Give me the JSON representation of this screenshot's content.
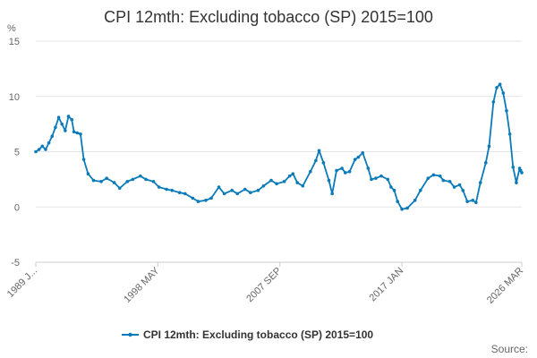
{
  "chart_data": {
    "type": "line",
    "title": "CPI 12mth: Excluding tobacco (SP) 2015=100",
    "y_unit_label": "%",
    "xlabel": "",
    "ylabel": "",
    "ylim": [
      -5,
      15
    ],
    "y_ticks": [
      "15",
      "10",
      "5",
      "0",
      "-5"
    ],
    "x_range": [
      "1989-01",
      "2026-03"
    ],
    "x_tick_labels": [
      {
        "label": "1989 J...",
        "date": "1989-01"
      },
      {
        "label": "1998 MAY",
        "date": "1998-05"
      },
      {
        "label": "2007 SEP",
        "date": "2007-09"
      },
      {
        "label": "2017 JAN",
        "date": "2017-01"
      },
      {
        "label": "2026 MAR",
        "date": "2026-03"
      }
    ],
    "grid": true,
    "legend_position": "bottom",
    "series": [
      {
        "name": "CPI 12mth: Excluding tobacco (SP) 2015=100",
        "color": "#0a7ab9",
        "points": [
          [
            "1989-01",
            5.0
          ],
          [
            "1989-04",
            5.2
          ],
          [
            "1989-07",
            5.5
          ],
          [
            "1989-10",
            5.2
          ],
          [
            "1990-01",
            5.8
          ],
          [
            "1990-04",
            6.4
          ],
          [
            "1990-07",
            7.2
          ],
          [
            "1990-10",
            8.1
          ],
          [
            "1991-01",
            7.5
          ],
          [
            "1991-04",
            6.9
          ],
          [
            "1991-07",
            8.2
          ],
          [
            "1991-10",
            7.9
          ],
          [
            "1991-12",
            6.8
          ],
          [
            "1992-03",
            6.7
          ],
          [
            "1992-06",
            6.6
          ],
          [
            "1992-09",
            4.3
          ],
          [
            "1993-01",
            3.0
          ],
          [
            "1993-06",
            2.4
          ],
          [
            "1994-01",
            2.3
          ],
          [
            "1994-06",
            2.6
          ],
          [
            "1995-01",
            2.2
          ],
          [
            "1995-06",
            1.7
          ],
          [
            "1996-01",
            2.3
          ],
          [
            "1996-06",
            2.5
          ],
          [
            "1997-01",
            2.8
          ],
          [
            "1997-06",
            2.5
          ],
          [
            "1998-01",
            2.3
          ],
          [
            "1998-06",
            1.8
          ],
          [
            "1999-01",
            1.6
          ],
          [
            "1999-06",
            1.5
          ],
          [
            "2000-01",
            1.3
          ],
          [
            "2000-06",
            1.2
          ],
          [
            "2001-01",
            0.8
          ],
          [
            "2001-06",
            0.5
          ],
          [
            "2002-01",
            0.6
          ],
          [
            "2002-06",
            0.8
          ],
          [
            "2003-01",
            1.8
          ],
          [
            "2003-06",
            1.2
          ],
          [
            "2004-01",
            1.5
          ],
          [
            "2004-06",
            1.2
          ],
          [
            "2005-01",
            1.6
          ],
          [
            "2005-06",
            1.3
          ],
          [
            "2006-01",
            1.5
          ],
          [
            "2006-06",
            1.9
          ],
          [
            "2007-01",
            2.4
          ],
          [
            "2007-06",
            2.1
          ],
          [
            "2008-01",
            2.3
          ],
          [
            "2008-06",
            2.8
          ],
          [
            "2008-09",
            3.0
          ],
          [
            "2009-01",
            2.2
          ],
          [
            "2009-06",
            1.9
          ],
          [
            "2010-01",
            3.2
          ],
          [
            "2010-06",
            4.2
          ],
          [
            "2010-09",
            5.1
          ],
          [
            "2011-01",
            4.0
          ],
          [
            "2011-06",
            2.4
          ],
          [
            "2011-09",
            1.2
          ],
          [
            "2012-01",
            3.3
          ],
          [
            "2012-06",
            3.5
          ],
          [
            "2012-09",
            3.1
          ],
          [
            "2013-01",
            3.2
          ],
          [
            "2013-06",
            4.3
          ],
          [
            "2013-09",
            4.5
          ],
          [
            "2014-01",
            4.9
          ],
          [
            "2014-06",
            3.5
          ],
          [
            "2014-09",
            2.5
          ],
          [
            "2015-01",
            2.6
          ],
          [
            "2015-06",
            2.8
          ],
          [
            "2015-12",
            2.5
          ],
          [
            "2016-03",
            1.8
          ],
          [
            "2016-06",
            1.5
          ],
          [
            "2016-09",
            0.5
          ],
          [
            "2017-01",
            -0.2
          ],
          [
            "2017-06",
            -0.1
          ],
          [
            "2018-01",
            0.6
          ],
          [
            "2018-06",
            1.5
          ],
          [
            "2019-01",
            2.6
          ],
          [
            "2019-06",
            2.9
          ],
          [
            "2019-12",
            2.8
          ],
          [
            "2020-03",
            2.4
          ],
          [
            "2020-09",
            2.3
          ],
          [
            "2021-01",
            1.8
          ],
          [
            "2021-06",
            2.0
          ],
          [
            "2021-09",
            1.5
          ],
          [
            "2022-01",
            0.5
          ],
          [
            "2022-06",
            0.6
          ],
          [
            "2022-09",
            0.4
          ],
          [
            "2023-01",
            2.2
          ],
          [
            "2023-06",
            4.0
          ],
          [
            "2023-09",
            5.5
          ],
          [
            "2024-01",
            9.5
          ],
          [
            "2024-04",
            10.8
          ],
          [
            "2024-07",
            11.1
          ],
          [
            "2024-10",
            10.3
          ],
          [
            "2025-01",
            8.7
          ],
          [
            "2025-04",
            6.6
          ],
          [
            "2025-07",
            3.6
          ],
          [
            "2025-10",
            2.2
          ],
          [
            "2026-01",
            3.5
          ],
          [
            "2026-02",
            3.3
          ],
          [
            "2026-03",
            3.1
          ]
        ]
      }
    ]
  },
  "legend": {
    "label": "CPI 12mth: Excluding tobacco (SP) 2015=100"
  },
  "footer": {
    "source_label": "Source:"
  }
}
